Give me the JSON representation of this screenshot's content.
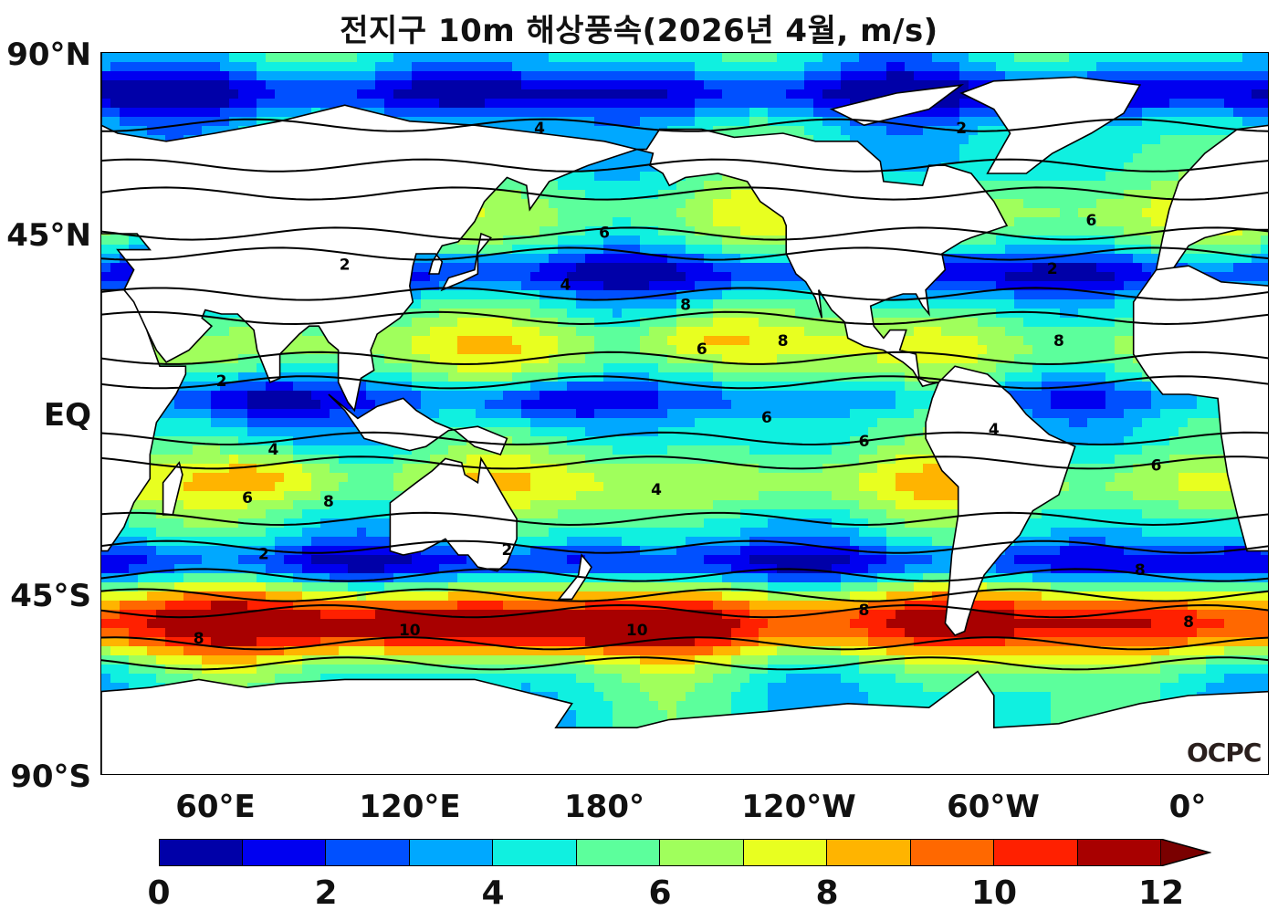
{
  "title": "전지구 10m 해상풍속(2026년 4월, m/s)",
  "logo": "OCPC",
  "lat_labels": [
    "90°N",
    "45°N",
    "EQ",
    "45°S",
    "90°S"
  ],
  "lon_labels": [
    "60°E",
    "120°E",
    "180°",
    "120°W",
    "60°W",
    "0°"
  ],
  "colorbar": {
    "min": 0,
    "max": 12,
    "step": 1,
    "extend": "max",
    "tick_labels": [
      "0",
      "2",
      "4",
      "6",
      "8",
      "10",
      "12"
    ],
    "colors": [
      "#0000a8",
      "#0000f0",
      "#0050ff",
      "#00a8ff",
      "#10f0e0",
      "#5cff9c",
      "#a0ff5c",
      "#e8ff20",
      "#ffb400",
      "#ff6800",
      "#ff2000",
      "#a80000"
    ],
    "over_color": "#7a0000"
  },
  "contour_labels": [
    "2",
    "4",
    "6",
    "8",
    "10"
  ],
  "map": {
    "lon_range": [
      25,
      385
    ],
    "lat_range": [
      -90,
      90
    ],
    "wind_maxima": [
      {
        "region": "Southern Ocean south of Indian Ocean",
        "value": 10
      },
      {
        "region": "Southern Ocean south of Pacific",
        "value": 10
      },
      {
        "region": "North Pacific trade winds",
        "value": 8
      },
      {
        "region": "Indian Ocean trade winds",
        "value": 8
      },
      {
        "region": "North Atlantic trade winds",
        "value": 8
      }
    ]
  }
}
